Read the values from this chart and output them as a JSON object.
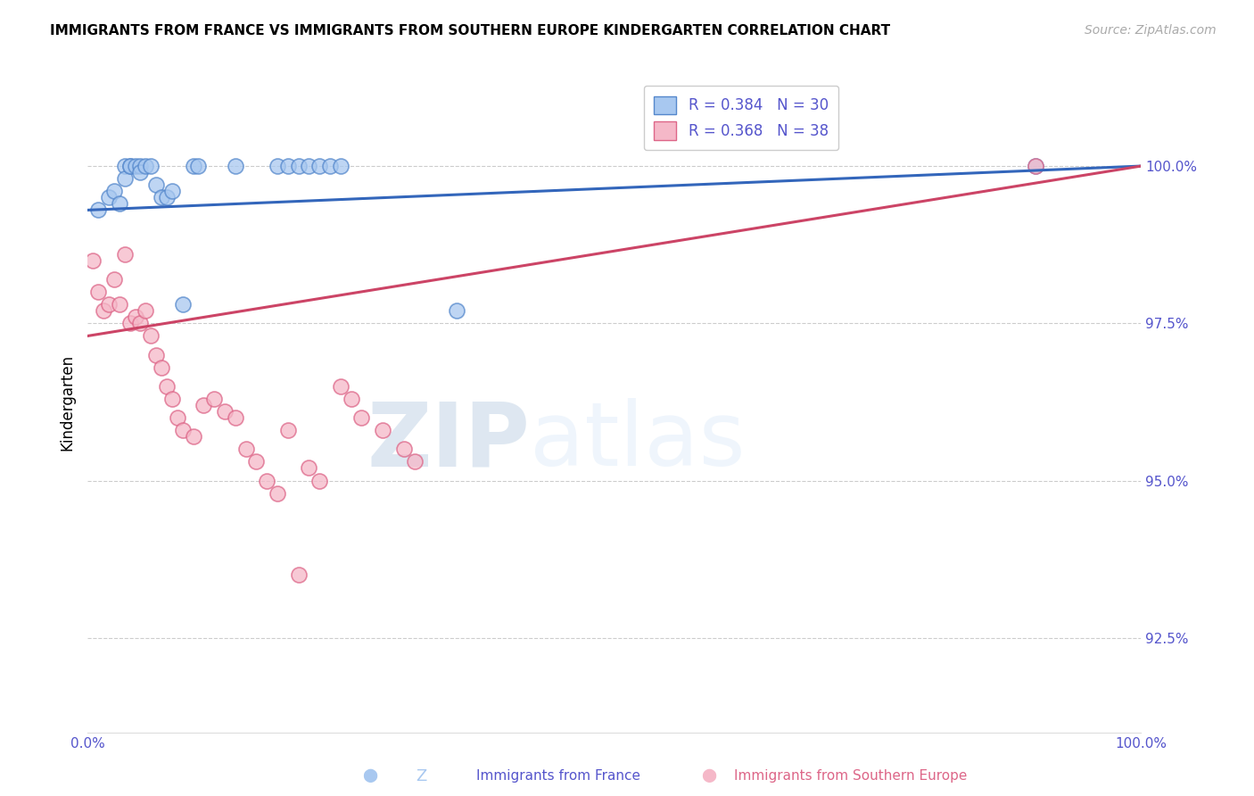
{
  "title": "IMMIGRANTS FROM FRANCE VS IMMIGRANTS FROM SOUTHERN EUROPE KINDERGARTEN CORRELATION CHART",
  "source": "Source: ZipAtlas.com",
  "ylabel": "Kindergarten",
  "y_tick_labels": [
    "92.5%",
    "95.0%",
    "97.5%",
    "100.0%"
  ],
  "y_tick_values": [
    92.5,
    95.0,
    97.5,
    100.0
  ],
  "xlim": [
    0.0,
    100.0
  ],
  "ylim": [
    91.0,
    101.5
  ],
  "legend_blue_r": "R = 0.384",
  "legend_blue_n": "N = 30",
  "legend_pink_r": "R = 0.368",
  "legend_pink_n": "N = 38",
  "watermark_zip": "ZIP",
  "watermark_atlas": "atlas",
  "blue_scatter_x": [
    1.0,
    2.0,
    2.5,
    3.0,
    3.5,
    3.5,
    4.0,
    4.0,
    4.5,
    5.0,
    5.0,
    5.5,
    6.0,
    6.5,
    7.0,
    7.5,
    8.0,
    9.0,
    10.0,
    10.5,
    14.0,
    18.0,
    19.0,
    20.0,
    21.0,
    22.0,
    23.0,
    24.0,
    35.0,
    90.0
  ],
  "blue_scatter_y": [
    99.3,
    99.5,
    99.6,
    99.4,
    100.0,
    99.8,
    100.0,
    100.0,
    100.0,
    100.0,
    99.9,
    100.0,
    100.0,
    99.7,
    99.5,
    99.5,
    99.6,
    97.8,
    100.0,
    100.0,
    100.0,
    100.0,
    100.0,
    100.0,
    100.0,
    100.0,
    100.0,
    100.0,
    97.7,
    100.0
  ],
  "pink_scatter_x": [
    0.5,
    1.0,
    1.5,
    2.0,
    2.5,
    3.0,
    3.5,
    4.0,
    4.5,
    5.0,
    5.5,
    6.0,
    6.5,
    7.0,
    7.5,
    8.0,
    8.5,
    9.0,
    10.0,
    11.0,
    12.0,
    13.0,
    14.0,
    15.0,
    16.0,
    17.0,
    18.0,
    19.0,
    20.0,
    21.0,
    22.0,
    24.0,
    25.0,
    26.0,
    28.0,
    30.0,
    31.0,
    90.0
  ],
  "pink_scatter_y": [
    98.5,
    98.0,
    97.7,
    97.8,
    98.2,
    97.8,
    98.6,
    97.5,
    97.6,
    97.5,
    97.7,
    97.3,
    97.0,
    96.8,
    96.5,
    96.3,
    96.0,
    95.8,
    95.7,
    96.2,
    96.3,
    96.1,
    96.0,
    95.5,
    95.3,
    95.0,
    94.8,
    95.8,
    93.5,
    95.2,
    95.0,
    96.5,
    96.3,
    96.0,
    95.8,
    95.5,
    95.3,
    100.0
  ],
  "blue_color": "#a8c8f0",
  "pink_color": "#f5b8c8",
  "blue_edge_color": "#5588cc",
  "pink_edge_color": "#dd6688",
  "blue_line_color": "#3366bb",
  "pink_line_color": "#cc4466",
  "grid_color": "#cccccc",
  "axis_color": "#5555cc",
  "background_color": "#ffffff",
  "blue_line_start_y": 99.3,
  "blue_line_end_y": 100.0,
  "pink_line_start_y": 97.3,
  "pink_line_end_y": 100.0
}
